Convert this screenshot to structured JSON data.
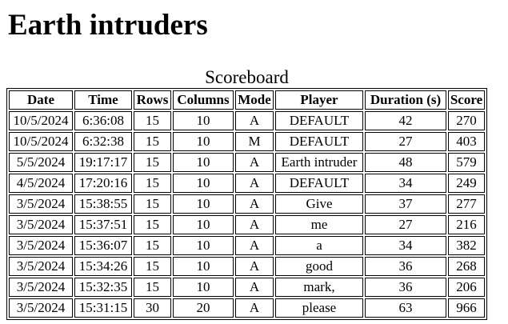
{
  "page": {
    "title": "Earth intruders"
  },
  "scoreboard": {
    "caption": "Scoreboard",
    "headers": [
      "Date",
      "Time",
      "Rows",
      "Columns",
      "Mode",
      "Player",
      "Duration (s)",
      "Score"
    ],
    "rows": [
      [
        "10/5/2024",
        "6:36:08",
        "15",
        "10",
        "A",
        "DEFAULT",
        "42",
        "270"
      ],
      [
        "10/5/2024",
        "6:32:38",
        "15",
        "10",
        "M",
        "DEFAULT",
        "27",
        "403"
      ],
      [
        "5/5/2024",
        "19:17:17",
        "15",
        "10",
        "A",
        "Earth intruder",
        "48",
        "579"
      ],
      [
        "4/5/2024",
        "17:20:16",
        "15",
        "10",
        "A",
        "DEFAULT",
        "34",
        "249"
      ],
      [
        "3/5/2024",
        "15:38:55",
        "15",
        "10",
        "A",
        "Give",
        "37",
        "277"
      ],
      [
        "3/5/2024",
        "15:37:51",
        "15",
        "10",
        "A",
        "me",
        "27",
        "216"
      ],
      [
        "3/5/2024",
        "15:36:07",
        "15",
        "10",
        "A",
        "a",
        "34",
        "382"
      ],
      [
        "3/5/2024",
        "15:34:26",
        "15",
        "10",
        "A",
        "good",
        "36",
        "268"
      ],
      [
        "3/5/2024",
        "15:32:35",
        "15",
        "10",
        "A",
        "mark,",
        "36",
        "206"
      ],
      [
        "3/5/2024",
        "15:31:15",
        "30",
        "20",
        "A",
        "please",
        "63",
        "966"
      ]
    ]
  }
}
